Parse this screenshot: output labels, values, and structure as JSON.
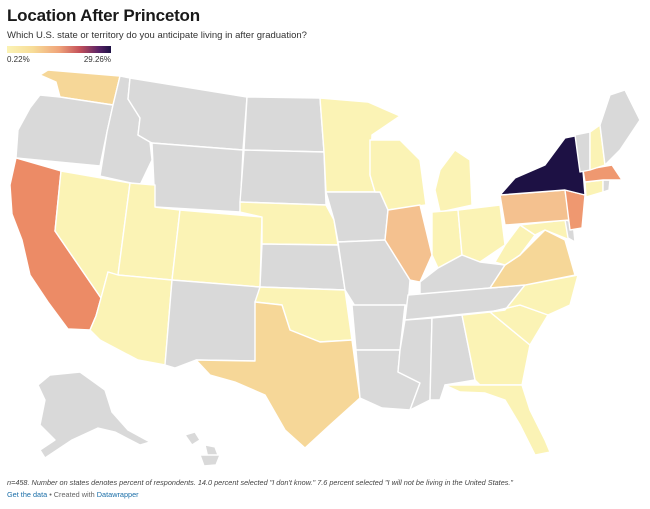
{
  "header": {
    "title": "Location After Princeton",
    "subtitle": "Which U.S. state or territory do you anticipate living in after graduation?"
  },
  "legend": {
    "min_label": "0.22%",
    "max_label": "29.26%",
    "min_value": 0.22,
    "max_value": 29.26
  },
  "colors": {
    "no_data": "#d9d9d9",
    "lightest": "#fbf3b5",
    "light": "#f8e6a5",
    "medium_light": "#f6d798",
    "medium": "#f4c18f",
    "orange": "#ef9870",
    "deep_orange": "#ec8b66",
    "darkest": "#1d1144"
  },
  "states": [
    {
      "id": "WA",
      "shade": "medium_light"
    },
    {
      "id": "OR",
      "shade": "no_data"
    },
    {
      "id": "CA",
      "shade": "deep_orange"
    },
    {
      "id": "NV",
      "shade": "lightest"
    },
    {
      "id": "ID",
      "shade": "no_data"
    },
    {
      "id": "MT",
      "shade": "no_data"
    },
    {
      "id": "WY",
      "shade": "no_data"
    },
    {
      "id": "UT",
      "shade": "lightest"
    },
    {
      "id": "AZ",
      "shade": "lightest"
    },
    {
      "id": "CO",
      "shade": "lightest"
    },
    {
      "id": "NM",
      "shade": "no_data"
    },
    {
      "id": "ND",
      "shade": "no_data"
    },
    {
      "id": "SD",
      "shade": "no_data"
    },
    {
      "id": "NE",
      "shade": "lightest"
    },
    {
      "id": "KS",
      "shade": "no_data"
    },
    {
      "id": "OK",
      "shade": "lightest"
    },
    {
      "id": "TX",
      "shade": "medium_light"
    },
    {
      "id": "MN",
      "shade": "lightest"
    },
    {
      "id": "IA",
      "shade": "no_data"
    },
    {
      "id": "MO",
      "shade": "no_data"
    },
    {
      "id": "AR",
      "shade": "no_data"
    },
    {
      "id": "LA",
      "shade": "no_data"
    },
    {
      "id": "WI",
      "shade": "lightest"
    },
    {
      "id": "IL",
      "shade": "medium"
    },
    {
      "id": "MI",
      "shade": "lightest"
    },
    {
      "id": "IN",
      "shade": "lightest"
    },
    {
      "id": "OH",
      "shade": "lightest"
    },
    {
      "id": "KY",
      "shade": "no_data"
    },
    {
      "id": "TN",
      "shade": "no_data"
    },
    {
      "id": "MS",
      "shade": "no_data"
    },
    {
      "id": "AL",
      "shade": "no_data"
    },
    {
      "id": "GA",
      "shade": "lightest"
    },
    {
      "id": "FL",
      "shade": "lightest"
    },
    {
      "id": "SC",
      "shade": "lightest"
    },
    {
      "id": "NC",
      "shade": "lightest"
    },
    {
      "id": "VA",
      "shade": "medium_light"
    },
    {
      "id": "WV",
      "shade": "lightest"
    },
    {
      "id": "PA",
      "shade": "medium"
    },
    {
      "id": "NY",
      "shade": "darkest"
    },
    {
      "id": "NJ",
      "shade": "orange"
    },
    {
      "id": "DE",
      "shade": "no_data"
    },
    {
      "id": "MD",
      "shade": "lightest"
    },
    {
      "id": "CT",
      "shade": "lightest"
    },
    {
      "id": "RI",
      "shade": "no_data"
    },
    {
      "id": "MA",
      "shade": "orange"
    },
    {
      "id": "VT",
      "shade": "no_data"
    },
    {
      "id": "NH",
      "shade": "lightest"
    },
    {
      "id": "ME",
      "shade": "no_data"
    },
    {
      "id": "AK",
      "shade": "no_data"
    },
    {
      "id": "HI",
      "shade": "no_data"
    }
  ],
  "footer": {
    "note": "n=458. Number on states denotes percent of respondents. 14.0 percent selected \"I don't know.\" 7.6 percent selected \"I will not be living in the United States.\"",
    "get_data": "Get the data",
    "created_with": " • Created with ",
    "datawrapper": "Datawrapper"
  }
}
